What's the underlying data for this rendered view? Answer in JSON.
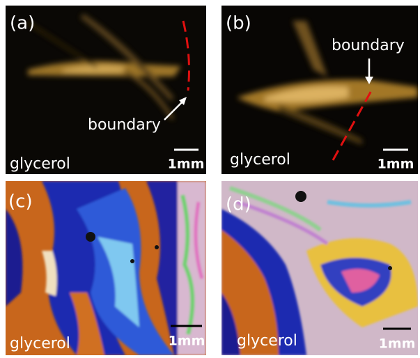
{
  "panels": [
    {
      "label": "(a)",
      "boundary": "boundary",
      "medium": "glycerol",
      "scale": "1mm"
    },
    {
      "label": "(b)",
      "boundary": "boundary",
      "medium": "glycerol",
      "scale": "1mm"
    },
    {
      "label": "(c)",
      "medium": "glycerol",
      "scale": "1mm"
    },
    {
      "label": "(d)",
      "medium": "glycerol",
      "scale": "1mm"
    }
  ]
}
